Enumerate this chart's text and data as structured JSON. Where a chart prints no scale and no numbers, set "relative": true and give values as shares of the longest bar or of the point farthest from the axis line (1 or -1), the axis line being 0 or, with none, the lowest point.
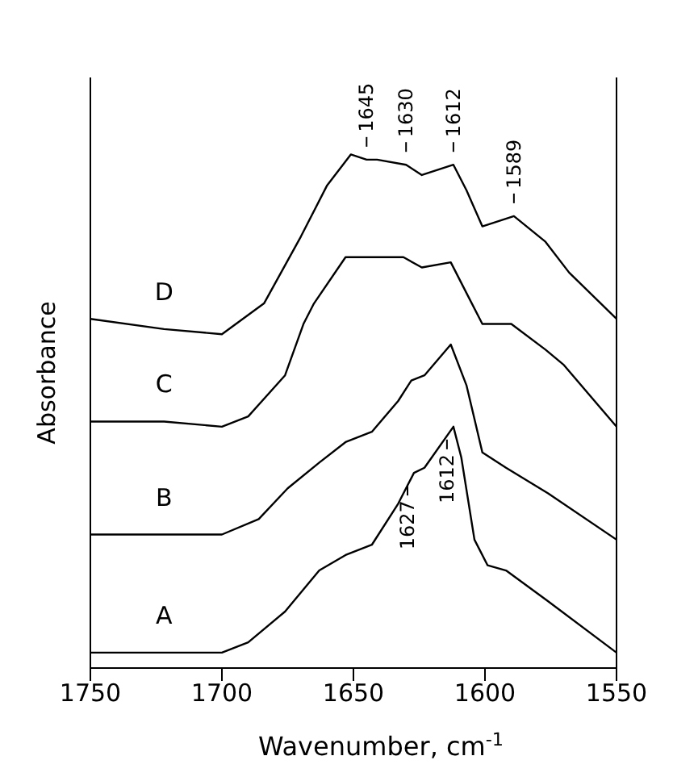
{
  "chart_data": {
    "type": "line",
    "relative": true,
    "xlabel": "Wavenumber, cm$^{-1}$",
    "ylabel": "Absorbance",
    "xlim": [
      1750,
      1550
    ],
    "xticks": [
      1750,
      1700,
      1650,
      1600,
      1550
    ],
    "grid": false,
    "legend": false,
    "marker": "none",
    "line_style": "solid",
    "series": [
      {
        "name": "A",
        "color": "#000000",
        "x": [
          1750,
          1722,
          1700,
          1690,
          1676,
          1663,
          1653,
          1643,
          1633,
          1627,
          1623,
          1612,
          1609,
          1604,
          1599,
          1592,
          1576,
          1550
        ],
        "values": [
          0.03,
          0.03,
          0.03,
          0.05,
          0.11,
          0.19,
          0.22,
          0.24,
          0.32,
          0.38,
          0.39,
          0.47,
          0.41,
          0.25,
          0.2,
          0.19,
          0.13,
          0.03
        ]
      },
      {
        "name": "B",
        "color": "#000000",
        "x": [
          1750,
          1722,
          1700,
          1686,
          1675,
          1663,
          1653,
          1643,
          1633,
          1628,
          1623,
          1613,
          1607,
          1601,
          1592,
          1576,
          1550
        ],
        "values": [
          0.26,
          0.26,
          0.26,
          0.29,
          0.35,
          0.4,
          0.44,
          0.46,
          0.52,
          0.56,
          0.57,
          0.63,
          0.55,
          0.42,
          0.39,
          0.34,
          0.25
        ]
      },
      {
        "name": "C",
        "color": "#000000",
        "x": [
          1750,
          1722,
          1700,
          1690,
          1676,
          1669,
          1665,
          1653,
          1645,
          1631,
          1624,
          1613,
          1607,
          1601,
          1590,
          1577,
          1570,
          1550
        ],
        "values": [
          0.48,
          0.48,
          0.47,
          0.49,
          0.57,
          0.67,
          0.71,
          0.8,
          0.8,
          0.8,
          0.78,
          0.79,
          0.73,
          0.67,
          0.67,
          0.62,
          0.59,
          0.47
        ]
      },
      {
        "name": "D",
        "color": "#000000",
        "x": [
          1750,
          1722,
          1700,
          1684,
          1670,
          1660,
          1651,
          1645,
          1641,
          1630,
          1624,
          1612,
          1607,
          1601,
          1589,
          1577,
          1568,
          1550
        ],
        "values": [
          0.68,
          0.66,
          0.65,
          0.71,
          0.84,
          0.94,
          1.0,
          0.99,
          0.99,
          0.98,
          0.96,
          0.98,
          0.93,
          0.86,
          0.88,
          0.83,
          0.77,
          0.68
        ]
      }
    ],
    "annotations": [
      {
        "text": "1645",
        "x": 1645,
        "y": 0.99
      },
      {
        "text": "1630",
        "x": 1630,
        "y": 0.98
      },
      {
        "text": "1612",
        "x": 1612,
        "y": 0.98
      },
      {
        "text": "1589",
        "x": 1589,
        "y": 0.88
      },
      {
        "text": "1627",
        "x": 1627,
        "y": 0.38
      },
      {
        "text": "1612",
        "x": 1612,
        "y": 0.47
      }
    ]
  }
}
